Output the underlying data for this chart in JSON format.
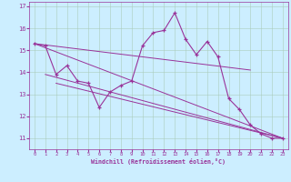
{
  "xlabel": "Windchill (Refroidissement éolien,°C)",
  "bg_color": "#cceeff",
  "line_color": "#993399",
  "grid_color": "#aaccbb",
  "ylim": [
    10.5,
    17.2
  ],
  "xlim": [
    -0.5,
    23.5
  ],
  "yticks": [
    11,
    12,
    13,
    14,
    15,
    16,
    17
  ],
  "xticks": [
    0,
    1,
    2,
    3,
    4,
    5,
    6,
    7,
    8,
    9,
    10,
    11,
    12,
    13,
    14,
    15,
    16,
    17,
    18,
    19,
    20,
    21,
    22,
    23
  ],
  "line1_x": [
    0,
    1,
    2,
    3,
    4,
    5,
    6,
    7,
    8,
    9,
    10,
    11,
    12,
    13,
    14,
    15,
    16,
    17,
    18,
    19,
    20,
    21,
    22,
    23
  ],
  "line1_y": [
    15.3,
    15.2,
    13.9,
    14.3,
    13.6,
    13.5,
    12.4,
    13.1,
    13.4,
    13.6,
    15.2,
    15.8,
    15.9,
    16.7,
    15.5,
    14.8,
    15.4,
    14.7,
    12.8,
    12.3,
    11.6,
    11.2,
    11.0,
    11.0
  ],
  "line2_x": [
    0,
    20
  ],
  "line2_y": [
    15.3,
    14.1
  ],
  "line3_x": [
    0,
    23
  ],
  "line3_y": [
    15.3,
    11.0
  ],
  "line4_x": [
    1,
    23
  ],
  "line4_y": [
    13.9,
    11.0
  ],
  "line5_x": [
    2,
    23
  ],
  "line5_y": [
    13.5,
    11.0
  ]
}
